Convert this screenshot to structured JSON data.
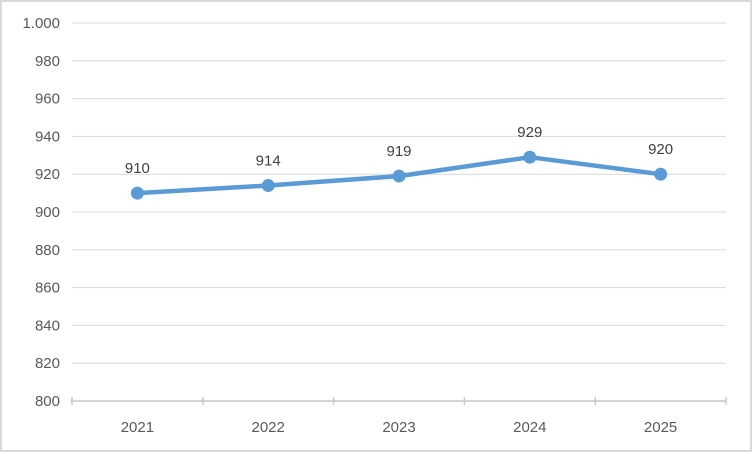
{
  "chart_data": {
    "type": "line",
    "title": "",
    "categories": [
      "2021",
      "2022",
      "2023",
      "2024",
      "2025"
    ],
    "series": [
      {
        "name": "",
        "values": [
          910,
          914,
          919,
          929,
          920
        ]
      }
    ],
    "data_labels": [
      "910",
      "914",
      "919",
      "929",
      "920"
    ],
    "y_ticks": [
      1000,
      980,
      960,
      940,
      920,
      900,
      880,
      860,
      840,
      820,
      800
    ],
    "y_tick_labels": [
      "1.000",
      "980",
      "960",
      "940",
      "920",
      "900",
      "880",
      "860",
      "840",
      "820",
      "800"
    ],
    "ylim": [
      800,
      1000
    ],
    "grid": true,
    "legend": "none",
    "marker": "circle",
    "colors": {
      "line": "#5B9BD5",
      "marker": "#5B9BD5",
      "gridline": "#D9D9D9",
      "axis_line": "#C6C6C6",
      "tick_label": "#595959",
      "data_label": "#404040",
      "background": "#FFFFFF",
      "frame_border": "#D9D9D9"
    }
  }
}
